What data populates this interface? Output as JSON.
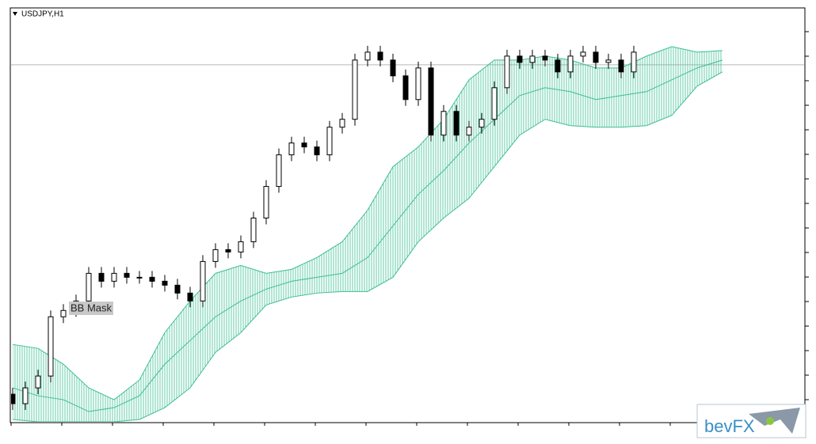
{
  "chart_data": {
    "type": "candlestick",
    "title": "USDJPY,H1",
    "annotation": "BB Mask",
    "brand": "bevFX",
    "xlim": [
      -0.125,
      62.4375
    ],
    "ylim": [
      0,
      523
    ],
    "open": [
      35,
      23,
      43,
      58,
      133,
      141,
      153,
      188,
      178,
      188,
      183,
      183,
      178,
      173,
      163,
      153,
      203,
      218,
      215,
      228,
      258,
      298,
      338,
      353,
      348,
      338,
      373,
      383,
      458,
      468,
      458,
      438,
      408,
      448,
      363,
      393,
      363,
      373,
      383,
      423,
      463,
      455,
      463,
      458,
      443,
      463,
      468,
      455,
      458,
      443
    ],
    "high": [
      43,
      51,
      66,
      141,
      149,
      161,
      196,
      196,
      196,
      196,
      191,
      191,
      186,
      181,
      171,
      211,
      226,
      226,
      236,
      266,
      306,
      346,
      361,
      361,
      356,
      381,
      391,
      466,
      476,
      476,
      466,
      446,
      456,
      456,
      401,
      401,
      381,
      391,
      431,
      471,
      471,
      471,
      471,
      466,
      471,
      476,
      476,
      466,
      466,
      476
    ],
    "low": [
      15,
      15,
      35,
      50,
      125,
      133,
      145,
      170,
      170,
      175,
      175,
      170,
      165,
      155,
      145,
      145,
      195,
      207,
      207,
      220,
      250,
      290,
      330,
      340,
      330,
      330,
      365,
      375,
      450,
      450,
      430,
      400,
      400,
      355,
      355,
      355,
      355,
      365,
      375,
      415,
      447,
      447,
      450,
      435,
      435,
      455,
      447,
      447,
      435,
      435
    ],
    "close": [
      23,
      43,
      58,
      133,
      141,
      153,
      188,
      178,
      188,
      183,
      183,
      178,
      173,
      163,
      153,
      203,
      218,
      215,
      228,
      258,
      298,
      338,
      353,
      348,
      338,
      373,
      383,
      458,
      468,
      458,
      438,
      408,
      448,
      363,
      393,
      363,
      373,
      383,
      423,
      463,
      455,
      463,
      458,
      443,
      463,
      468,
      455,
      458,
      443,
      468
    ],
    "up_color": "#ffffff",
    "down_color": "#000000",
    "price_line": 452,
    "band": {
      "color": "#3cbf94",
      "x": [
        0,
        2,
        4,
        6,
        8,
        10,
        12,
        14,
        16,
        18,
        20,
        22,
        24,
        26,
        28,
        30,
        32,
        34,
        36,
        38,
        40,
        42,
        44,
        46,
        48,
        50,
        52,
        54,
        56
      ],
      "upper": [
        98,
        93,
        73,
        43,
        28,
        53,
        113,
        153,
        188,
        198,
        188,
        193,
        208,
        228,
        268,
        323,
        348,
        383,
        433,
        458,
        458,
        463,
        458,
        448,
        448,
        463,
        475,
        468,
        470
      ],
      "middle": [
        43,
        33,
        28,
        13,
        18,
        33,
        73,
        103,
        133,
        153,
        168,
        178,
        183,
        188,
        208,
        248,
        288,
        318,
        353,
        383,
        413,
        423,
        418,
        408,
        413,
        418,
        433,
        448,
        458
      ],
      "lower": [
        3,
        0,
        0,
        0,
        0,
        3,
        18,
        43,
        88,
        113,
        148,
        158,
        163,
        165,
        165,
        183,
        228,
        258,
        283,
        323,
        363,
        383,
        375,
        373,
        373,
        375,
        388,
        425,
        443
      ]
    }
  }
}
